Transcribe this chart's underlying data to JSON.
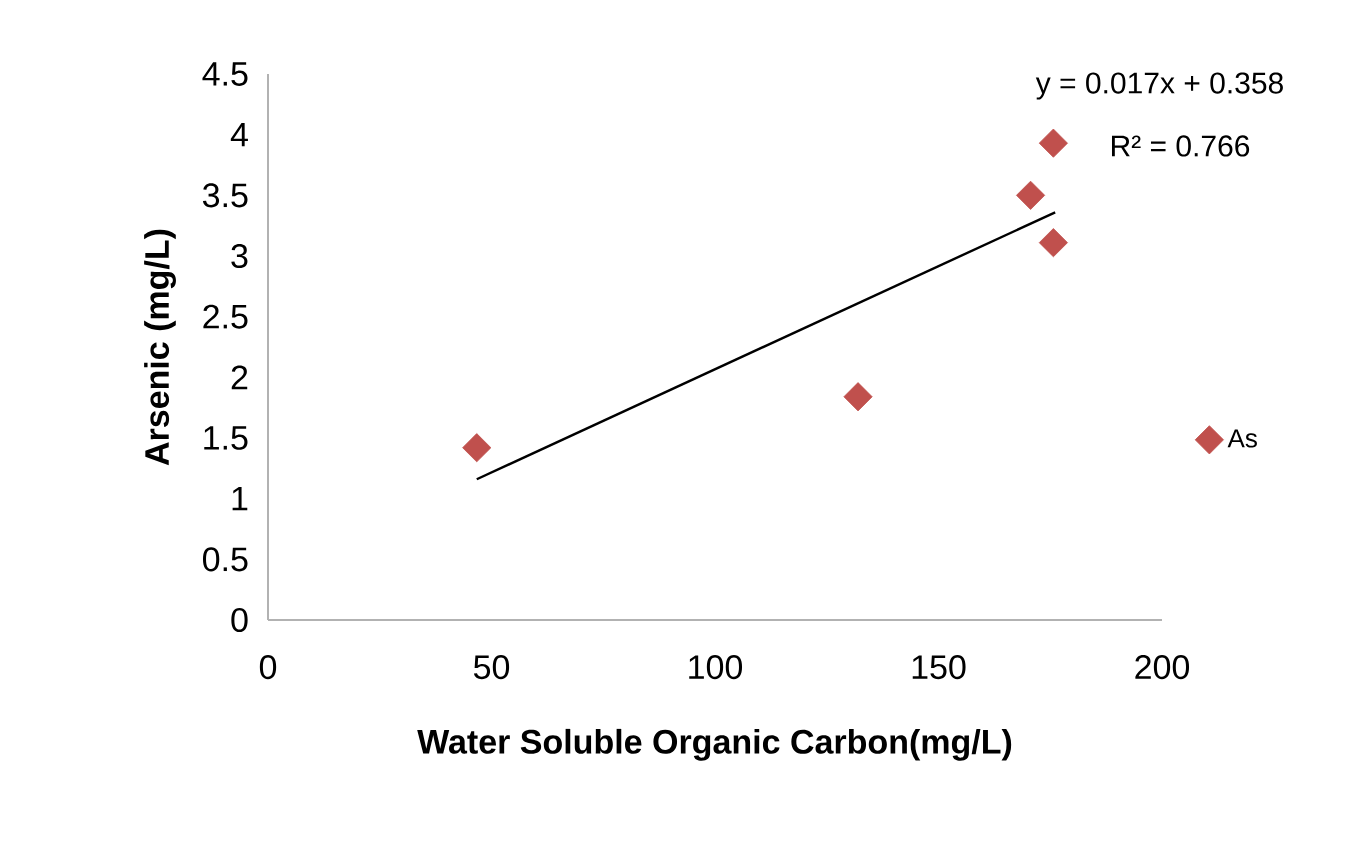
{
  "chart_data": {
    "type": "scatter",
    "xlabel": "Water Soluble Organic Carbon(mg/L)",
    "ylabel": "Arsenic (mg/L)",
    "xlim": [
      0,
      200
    ],
    "xticks": [
      0,
      50,
      100,
      150,
      200
    ],
    "ylim": [
      0,
      4.5
    ],
    "yticks": [
      0,
      0.5,
      1,
      1.5,
      2,
      2.5,
      3,
      3.5,
      4,
      4.5
    ],
    "series": [
      {
        "name": "As",
        "color": "#c0504d",
        "marker": "diamond",
        "x": [
          46.7,
          132,
          170.6,
          175.7,
          175.7
        ],
        "values": [
          1.42,
          1.84,
          3.5,
          3.11,
          3.93
        ]
      },
      {
        "type": "line",
        "color": "#000000",
        "line_style": "solid",
        "x": [
          46.7,
          176.1
        ],
        "values": [
          1.16,
          3.36
        ]
      }
    ],
    "annotations": [
      "y = 0.017x + 0.358",
      "R² = 0.766"
    ],
    "grid": false,
    "legend": "right"
  }
}
